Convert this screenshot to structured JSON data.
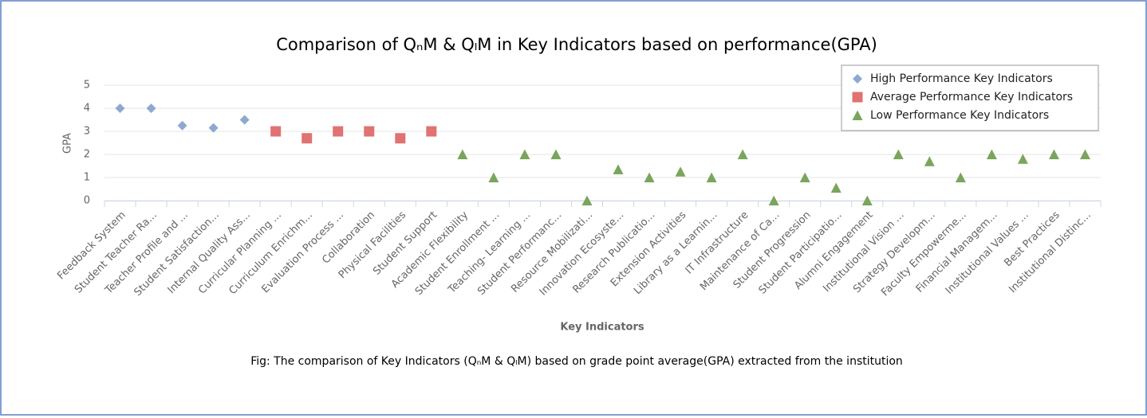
{
  "chart_data": {
    "type": "scatter",
    "title": "Comparison of QₙM & QₗM in Key Indicators based on performance(GPA)",
    "caption": "Fig: The comparison of Key Indicators (QₙM & QₗM) based on grade point average(GPA) extracted from the institution",
    "x_label": "Key Indicators",
    "y_label": "GPA",
    "categories": [
      "Feedback System",
      "Student Teacher Ra...",
      "Teacher Profile and ...",
      "Student Satisfaction...",
      "Internal Quality Ass...",
      "Curricular Planning ...",
      "Curriculum Enrichm...",
      "Evaluation Process ...",
      "Collaboration",
      "Physical Facilities",
      "Student Support",
      "Academic Flexibility",
      "Student Enrollment ...",
      "Teaching- Learning ...",
      "Student Performanc...",
      "Resource Mobilizati...",
      "Innovation Ecosyste...",
      "Research Publicatio...",
      "Extension Activities",
      "Library as a Learnin...",
      "IT Infrastructure",
      "Maintenance of Ca...",
      "Student Progression",
      "Student Participatio...",
      "Alumni Engagement",
      "Institutional Vision ...",
      "Strategy Developm...",
      "Faculty Empowerme...",
      "Financial Managem...",
      "Institutional Values ...",
      "Best Practices",
      "Institutional Distinc..."
    ],
    "series": [
      {
        "name": "High Performance Key Indicators",
        "color": "#8da9cf",
        "marker": "diamond",
        "values": [
          4,
          4,
          3.25,
          3.15,
          3.5,
          null,
          null,
          null,
          null,
          null,
          null,
          null,
          null,
          null,
          null,
          null,
          null,
          null,
          null,
          null,
          null,
          null,
          null,
          null,
          null,
          null,
          null,
          null,
          null,
          null,
          null,
          null
        ]
      },
      {
        "name": "Average Performance Key Indicators",
        "color": "#e07272",
        "marker": "square",
        "values": [
          null,
          null,
          null,
          null,
          null,
          3,
          2.7,
          3,
          3,
          2.7,
          3,
          null,
          null,
          null,
          null,
          null,
          null,
          null,
          null,
          null,
          null,
          null,
          null,
          null,
          null,
          null,
          null,
          null,
          null,
          null,
          null,
          null
        ]
      },
      {
        "name": "Low Performance Key Indicators",
        "color": "#7aa55c",
        "marker": "triangle",
        "values": [
          null,
          null,
          null,
          null,
          null,
          null,
          null,
          null,
          null,
          null,
          null,
          2,
          1,
          2,
          2,
          0,
          1.35,
          1,
          1.25,
          1,
          2,
          0,
          1,
          0.55,
          0,
          2,
          1.7,
          1,
          2,
          1.8,
          2,
          2
        ]
      }
    ],
    "ylim": [
      0,
      5
    ],
    "yticks": [
      0,
      1,
      2,
      3,
      4,
      5
    ],
    "grid": true,
    "legend": "top-right"
  }
}
